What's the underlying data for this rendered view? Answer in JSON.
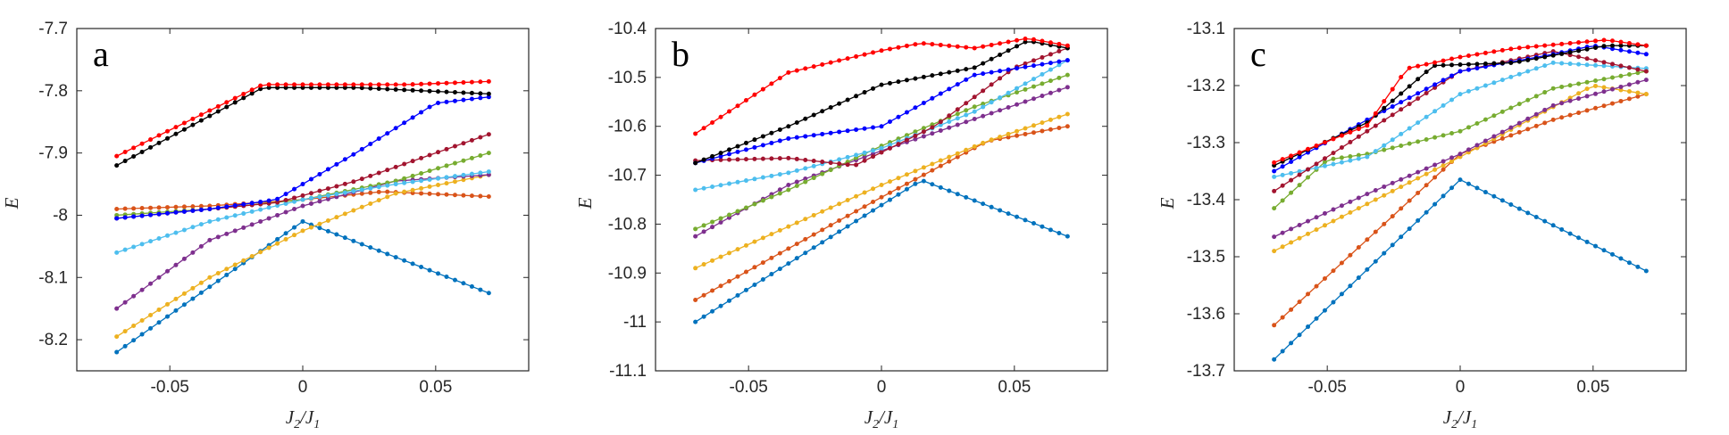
{
  "figure": {
    "series_colors": {
      "s1": "#0072BD",
      "s2": "#D95319",
      "s3": "#EDB120",
      "s4": "#7E2F8E",
      "s5": "#77AC30",
      "s6": "#4DBEEE",
      "s7": "#A2142F",
      "s8": "#0000FF",
      "s9": "#000000",
      "s10": "#FF0000"
    }
  },
  "chart_data": [
    {
      "type": "line",
      "panel_label": "a",
      "xlabel": "J2/J1",
      "xlabel_main": "J",
      "xlabel_sub1": "2",
      "xlabel_slash": "/J",
      "xlabel_sub2": "1",
      "ylabel": "E",
      "xlim": [
        -0.085,
        0.085
      ],
      "ylim": [
        -8.25,
        -7.7
      ],
      "x_range": [
        -0.07,
        0.07
      ],
      "xticks": [
        -0.05,
        0,
        0.05
      ],
      "xtick_labels": [
        "-0.05",
        "0",
        "0.05"
      ],
      "yticks": [
        -7.7,
        -7.8,
        -7.9,
        -8,
        -8.1,
        -8.2
      ],
      "ytick_labels": [
        "-7.7",
        "-7.8",
        "-7.9",
        "-8",
        "-8.1",
        "-8.2"
      ],
      "series": [
        {
          "name": "s1",
          "x": [
            -0.07,
            0.0,
            0.07
          ],
          "y": [
            -8.22,
            -8.01,
            -8.125
          ]
        },
        {
          "name": "s2",
          "x": [
            -0.07,
            -0.035,
            0.0,
            0.03,
            0.07
          ],
          "y": [
            -7.99,
            -7.985,
            -7.975,
            -7.962,
            -7.97
          ]
        },
        {
          "name": "s3",
          "x": [
            -0.07,
            -0.035,
            0.0,
            0.035,
            0.07
          ],
          "y": [
            -8.195,
            -8.1,
            -8.025,
            -7.965,
            -7.935
          ]
        },
        {
          "name": "s4",
          "x": [
            -0.07,
            -0.035,
            0.0,
            0.035,
            0.07
          ],
          "y": [
            -8.15,
            -8.04,
            -7.985,
            -7.945,
            -7.935
          ]
        },
        {
          "name": "s5",
          "x": [
            -0.07,
            -0.035,
            0.0,
            0.035,
            0.07
          ],
          "y": [
            -8.0,
            -7.99,
            -7.975,
            -7.945,
            -7.9
          ]
        },
        {
          "name": "s6",
          "x": [
            -0.07,
            -0.035,
            0.0,
            0.035,
            0.07
          ],
          "y": [
            -8.06,
            -8.01,
            -7.975,
            -7.95,
            -7.93
          ]
        },
        {
          "name": "s7",
          "x": [
            -0.07,
            -0.035,
            -0.01,
            0.02,
            0.05,
            0.07
          ],
          "y": [
            -8.005,
            -7.99,
            -7.98,
            -7.945,
            -7.9,
            -7.87
          ]
        },
        {
          "name": "s8",
          "x": [
            -0.07,
            -0.035,
            -0.01,
            0.02,
            0.05,
            0.07
          ],
          "y": [
            -8.005,
            -7.99,
            -7.975,
            -7.9,
            -7.82,
            -7.81
          ]
        },
        {
          "name": "s9",
          "x": [
            -0.07,
            -0.015,
            0.02,
            0.07
          ],
          "y": [
            -7.92,
            -7.795,
            -7.795,
            -7.805
          ]
        },
        {
          "name": "s10",
          "x": [
            -0.07,
            -0.015,
            0.01,
            0.04,
            0.07
          ],
          "y": [
            -7.905,
            -7.79,
            -7.79,
            -7.79,
            -7.785
          ]
        }
      ]
    },
    {
      "type": "line",
      "panel_label": "b",
      "xlabel": "J2/J1",
      "xlabel_main": "J",
      "xlabel_sub1": "2",
      "xlabel_slash": "/J",
      "xlabel_sub2": "1",
      "ylabel": "E",
      "xlim": [
        -0.085,
        0.085
      ],
      "ylim": [
        -11.1,
        -10.4
      ],
      "x_range": [
        -0.07,
        0.07
      ],
      "xticks": [
        -0.05,
        0,
        0.05
      ],
      "xtick_labels": [
        "-0.05",
        "0",
        "0.05"
      ],
      "yticks": [
        -10.4,
        -10.5,
        -10.6,
        -10.7,
        -10.8,
        -10.9,
        -11,
        -11.1
      ],
      "ytick_labels": [
        "-10.4",
        "-10.5",
        "-10.6",
        "-10.7",
        "-10.8",
        "-10.9",
        "-11",
        "-11.1"
      ],
      "series": [
        {
          "name": "s1",
          "x": [
            -0.07,
            0.015,
            0.07
          ],
          "y": [
            -11.0,
            -10.71,
            -10.825
          ]
        },
        {
          "name": "s2",
          "x": [
            -0.07,
            0.0,
            0.04,
            0.07
          ],
          "y": [
            -10.955,
            -10.745,
            -10.63,
            -10.6
          ]
        },
        {
          "name": "s3",
          "x": [
            -0.07,
            0.0,
            0.04,
            0.07
          ],
          "y": [
            -10.89,
            -10.72,
            -10.63,
            -10.575
          ]
        },
        {
          "name": "s4",
          "x": [
            -0.07,
            -0.035,
            0.0,
            0.035,
            0.07
          ],
          "y": [
            -10.825,
            -10.72,
            -10.65,
            -10.585,
            -10.52
          ]
        },
        {
          "name": "s5",
          "x": [
            -0.07,
            -0.035,
            0.0,
            0.035,
            0.07
          ],
          "y": [
            -10.81,
            -10.73,
            -10.64,
            -10.56,
            -10.495
          ]
        },
        {
          "name": "s6",
          "x": [
            -0.07,
            -0.035,
            0.0,
            0.035,
            0.07
          ],
          "y": [
            -10.73,
            -10.695,
            -10.645,
            -10.57,
            -10.465
          ]
        },
        {
          "name": "s7",
          "x": [
            -0.07,
            -0.035,
            -0.01,
            0.02,
            0.05,
            0.07
          ],
          "y": [
            -10.67,
            -10.665,
            -10.68,
            -10.6,
            -10.48,
            -10.44
          ]
        },
        {
          "name": "s8",
          "x": [
            -0.07,
            -0.035,
            0.0,
            0.035,
            0.07
          ],
          "y": [
            -10.675,
            -10.625,
            -10.6,
            -10.495,
            -10.465
          ]
        },
        {
          "name": "s9",
          "x": [
            -0.07,
            -0.035,
            0.0,
            0.035,
            0.055,
            0.07
          ],
          "y": [
            -10.675,
            -10.6,
            -10.515,
            -10.48,
            -10.425,
            -10.44
          ]
        },
        {
          "name": "s10",
          "x": [
            -0.07,
            -0.035,
            0.0,
            0.015,
            0.035,
            0.055,
            0.07
          ],
          "y": [
            -10.615,
            -10.49,
            -10.445,
            -10.43,
            -10.44,
            -10.42,
            -10.435
          ]
        }
      ]
    },
    {
      "type": "line",
      "panel_label": "c",
      "xlabel": "J2/J1",
      "xlabel_main": "J",
      "xlabel_sub1": "2",
      "xlabel_slash": "/J",
      "xlabel_sub2": "1",
      "ylabel": "E",
      "xlim": [
        -0.085,
        0.085
      ],
      "ylim": [
        -13.7,
        -13.1
      ],
      "x_range": [
        -0.07,
        0.07
      ],
      "xticks": [
        -0.05,
        0,
        0.05
      ],
      "xtick_labels": [
        "-0.05",
        "0",
        "0.05"
      ],
      "yticks": [
        -13.1,
        -13.2,
        -13.3,
        -13.4,
        -13.5,
        -13.6,
        -13.7
      ],
      "ytick_labels": [
        "-13.1",
        "-13.2",
        "-13.3",
        "-13.4",
        "-13.5",
        "-13.6",
        "-13.7"
      ],
      "series": [
        {
          "name": "s1",
          "x": [
            -0.07,
            0.0,
            0.07
          ],
          "y": [
            -13.68,
            -13.365,
            -13.525
          ]
        },
        {
          "name": "s2",
          "x": [
            -0.07,
            0.0,
            0.035,
            0.07
          ],
          "y": [
            -13.62,
            -13.32,
            -13.26,
            -13.215
          ]
        },
        {
          "name": "s3",
          "x": [
            -0.07,
            0.0,
            0.05,
            0.07
          ],
          "y": [
            -13.49,
            -13.325,
            -13.2,
            -13.215
          ]
        },
        {
          "name": "s4",
          "x": [
            -0.07,
            -0.035,
            0.0,
            0.035,
            0.07
          ],
          "y": [
            -13.465,
            -13.39,
            -13.32,
            -13.235,
            -13.19
          ]
        },
        {
          "name": "s5",
          "x": [
            -0.07,
            -0.05,
            -0.035,
            0.0,
            0.035,
            0.07
          ],
          "y": [
            -13.415,
            -13.33,
            -13.32,
            -13.28,
            -13.205,
            -13.175
          ]
        },
        {
          "name": "s6",
          "x": [
            -0.07,
            -0.035,
            0.0,
            0.035,
            0.07
          ],
          "y": [
            -13.36,
            -13.325,
            -13.215,
            -13.16,
            -13.17
          ]
        },
        {
          "name": "s7",
          "x": [
            -0.07,
            -0.035,
            0.0,
            0.035,
            0.07
          ],
          "y": [
            -13.385,
            -13.28,
            -13.175,
            -13.14,
            -13.175
          ]
        },
        {
          "name": "s8",
          "x": [
            -0.07,
            -0.035,
            0.0,
            0.035,
            0.05,
            0.07
          ],
          "y": [
            -13.35,
            -13.26,
            -13.175,
            -13.145,
            -13.13,
            -13.145
          ]
        },
        {
          "name": "s9",
          "x": [
            -0.07,
            -0.035,
            -0.01,
            0.02,
            0.055,
            0.07
          ],
          "y": [
            -13.34,
            -13.265,
            -13.165,
            -13.16,
            -13.13,
            -13.13
          ]
        },
        {
          "name": "s10",
          "x": [
            -0.07,
            -0.035,
            -0.02,
            0.0,
            0.02,
            0.055,
            0.07
          ],
          "y": [
            -13.335,
            -13.27,
            -13.17,
            -13.15,
            -13.135,
            -13.12,
            -13.13
          ]
        }
      ]
    }
  ]
}
